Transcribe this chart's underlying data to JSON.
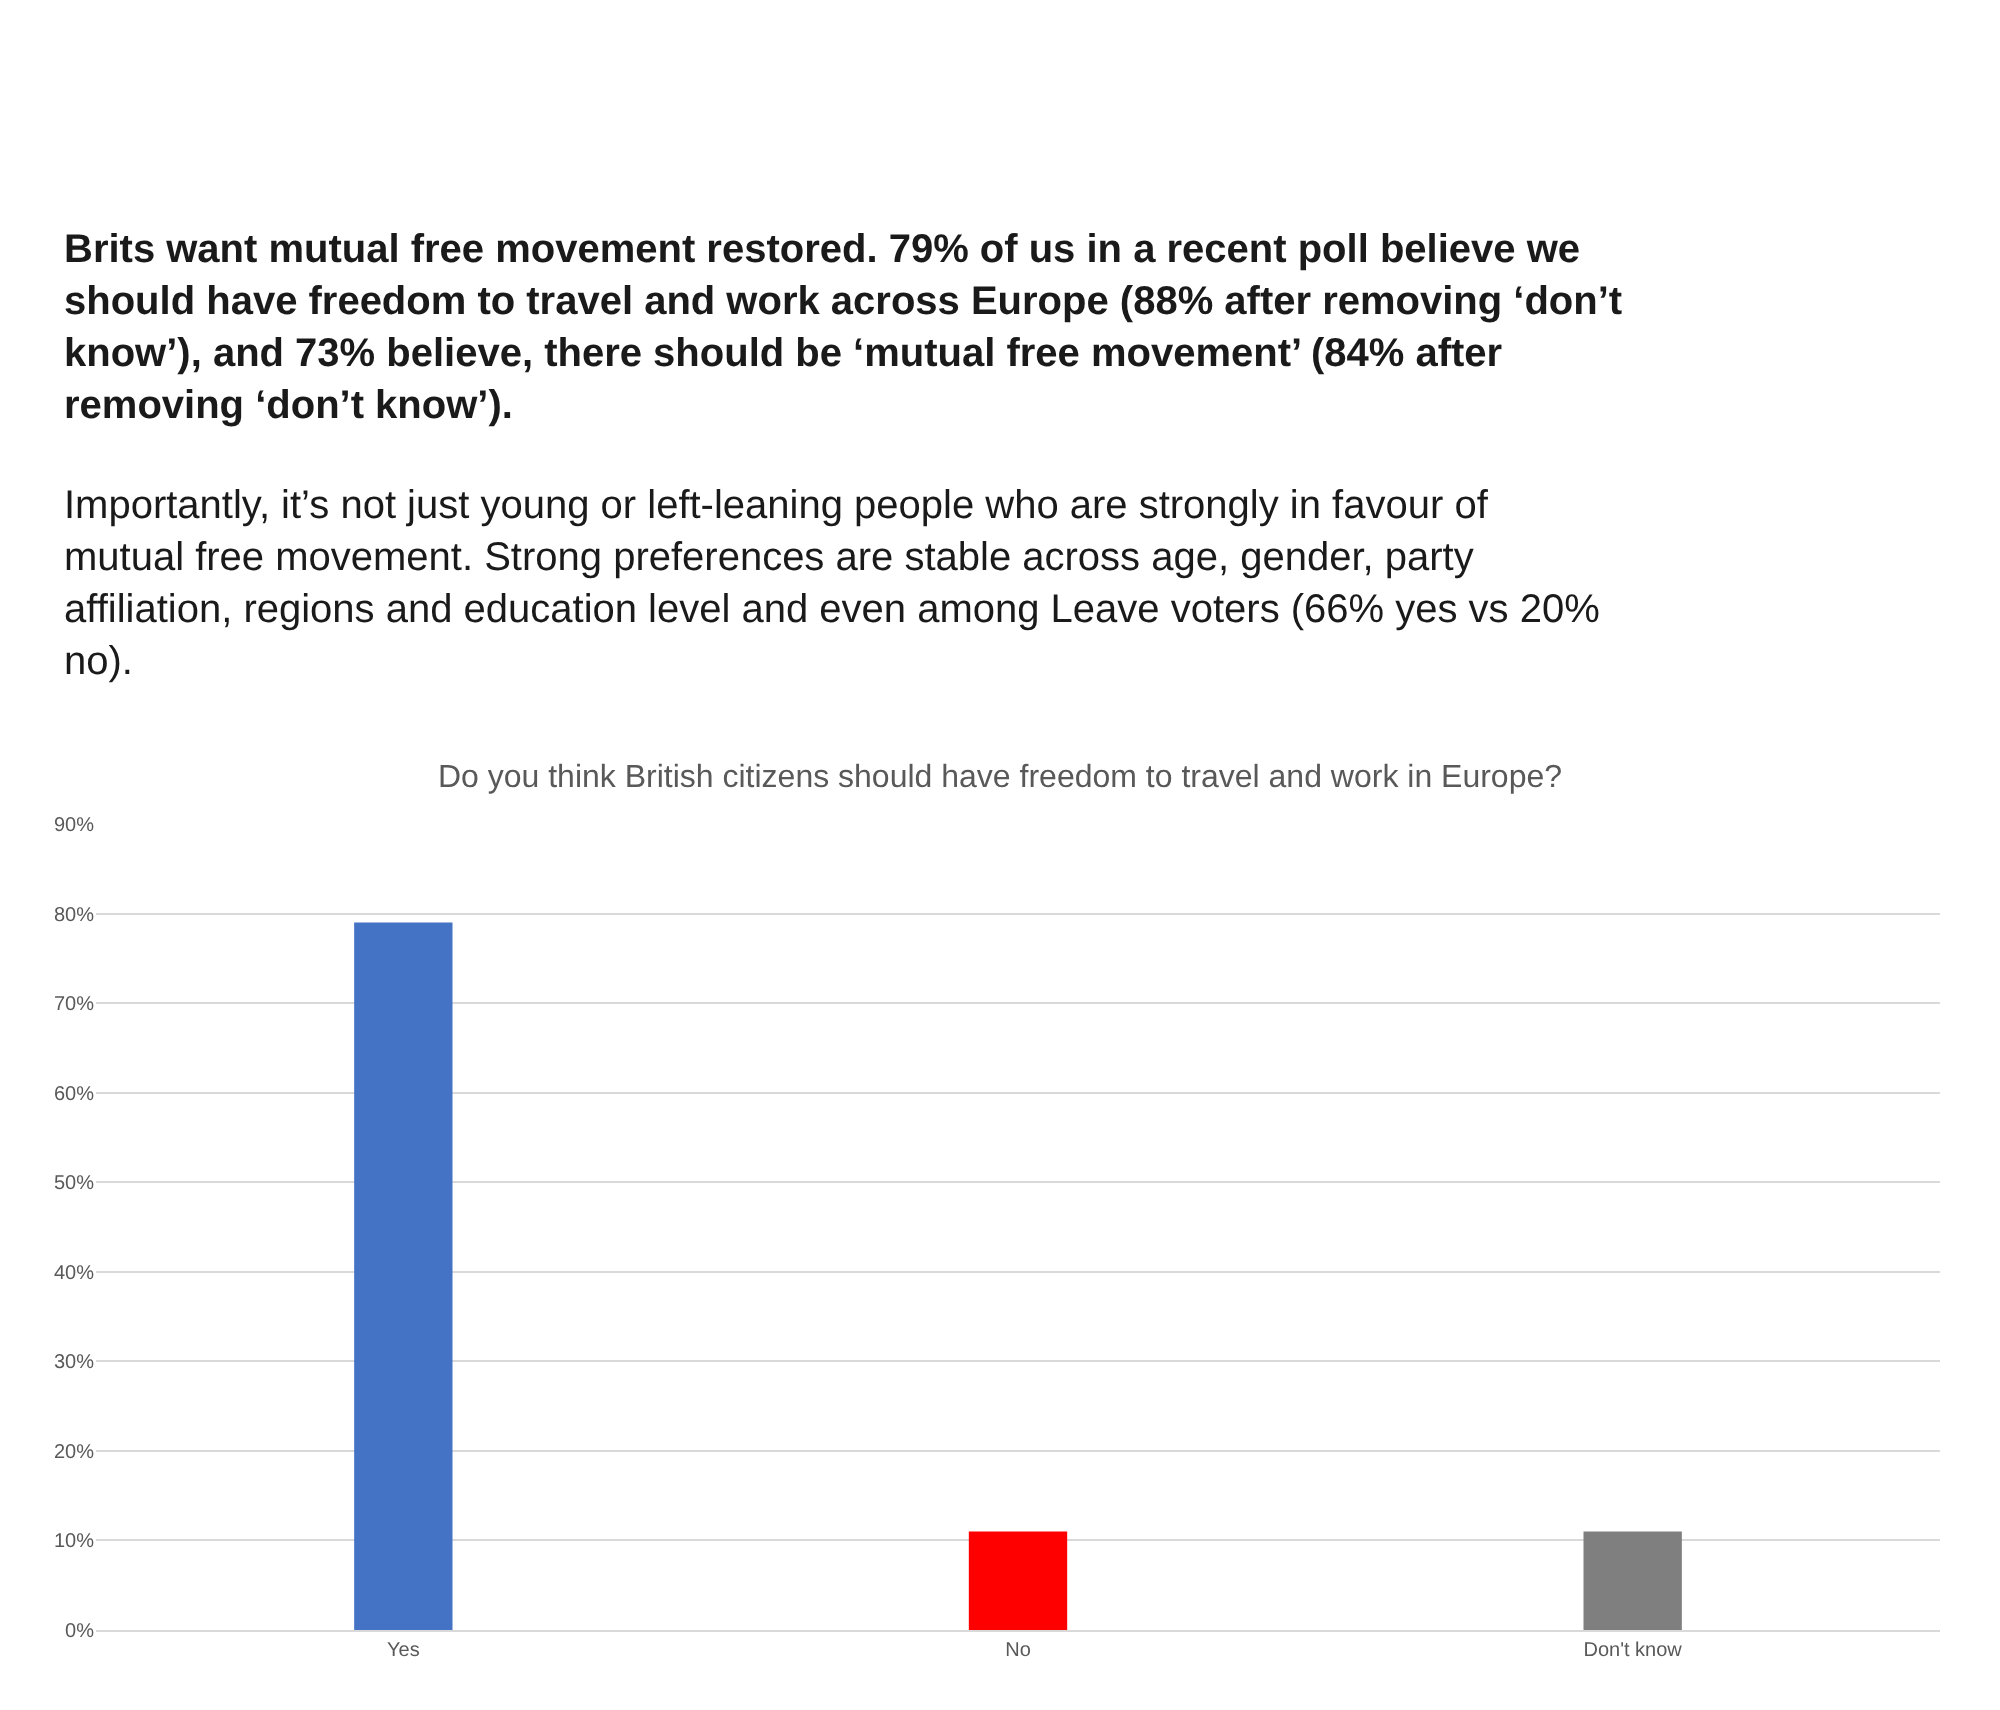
{
  "chart_data": {
    "type": "bar",
    "title": "Do you think British citizens should have freedom to travel and work in Europe?",
    "annotations": [
      "Brits want mutual free movement restored. 79% of us in a recent poll believe we should have freedom to travel and work across Europe (88% after removing ‘don’t know’), and 73% believe, there should be ‘mutual free movement’ (84% after removing ‘don’t know’).",
      "Importantly, it’s not just young or left-leaning people who are strongly in favour of mutual free movement. Strong preferences are stable across age, gender, party affiliation, regions and education level and even among Leave voters (66% yes vs 20% no)."
    ],
    "categories": [
      "Yes",
      "No",
      "Don't know"
    ],
    "values": [
      79,
      11,
      11
    ],
    "colors": [
      "#4472c4",
      "#ff0000",
      "#7f7f7f"
    ],
    "ylim": [
      0,
      90
    ],
    "yticks": [
      {
        "value": 0,
        "label": "0%"
      },
      {
        "value": 10,
        "label": "10%"
      },
      {
        "value": 20,
        "label": "20%"
      },
      {
        "value": 30,
        "label": "30%"
      },
      {
        "value": 40,
        "label": "40%"
      },
      {
        "value": 50,
        "label": "50%"
      },
      {
        "value": 60,
        "label": "60%"
      },
      {
        "value": 70,
        "label": "70%"
      },
      {
        "value": 80,
        "label": "80%"
      },
      {
        "value": 90,
        "label": "90%"
      }
    ],
    "grid": "y"
  }
}
